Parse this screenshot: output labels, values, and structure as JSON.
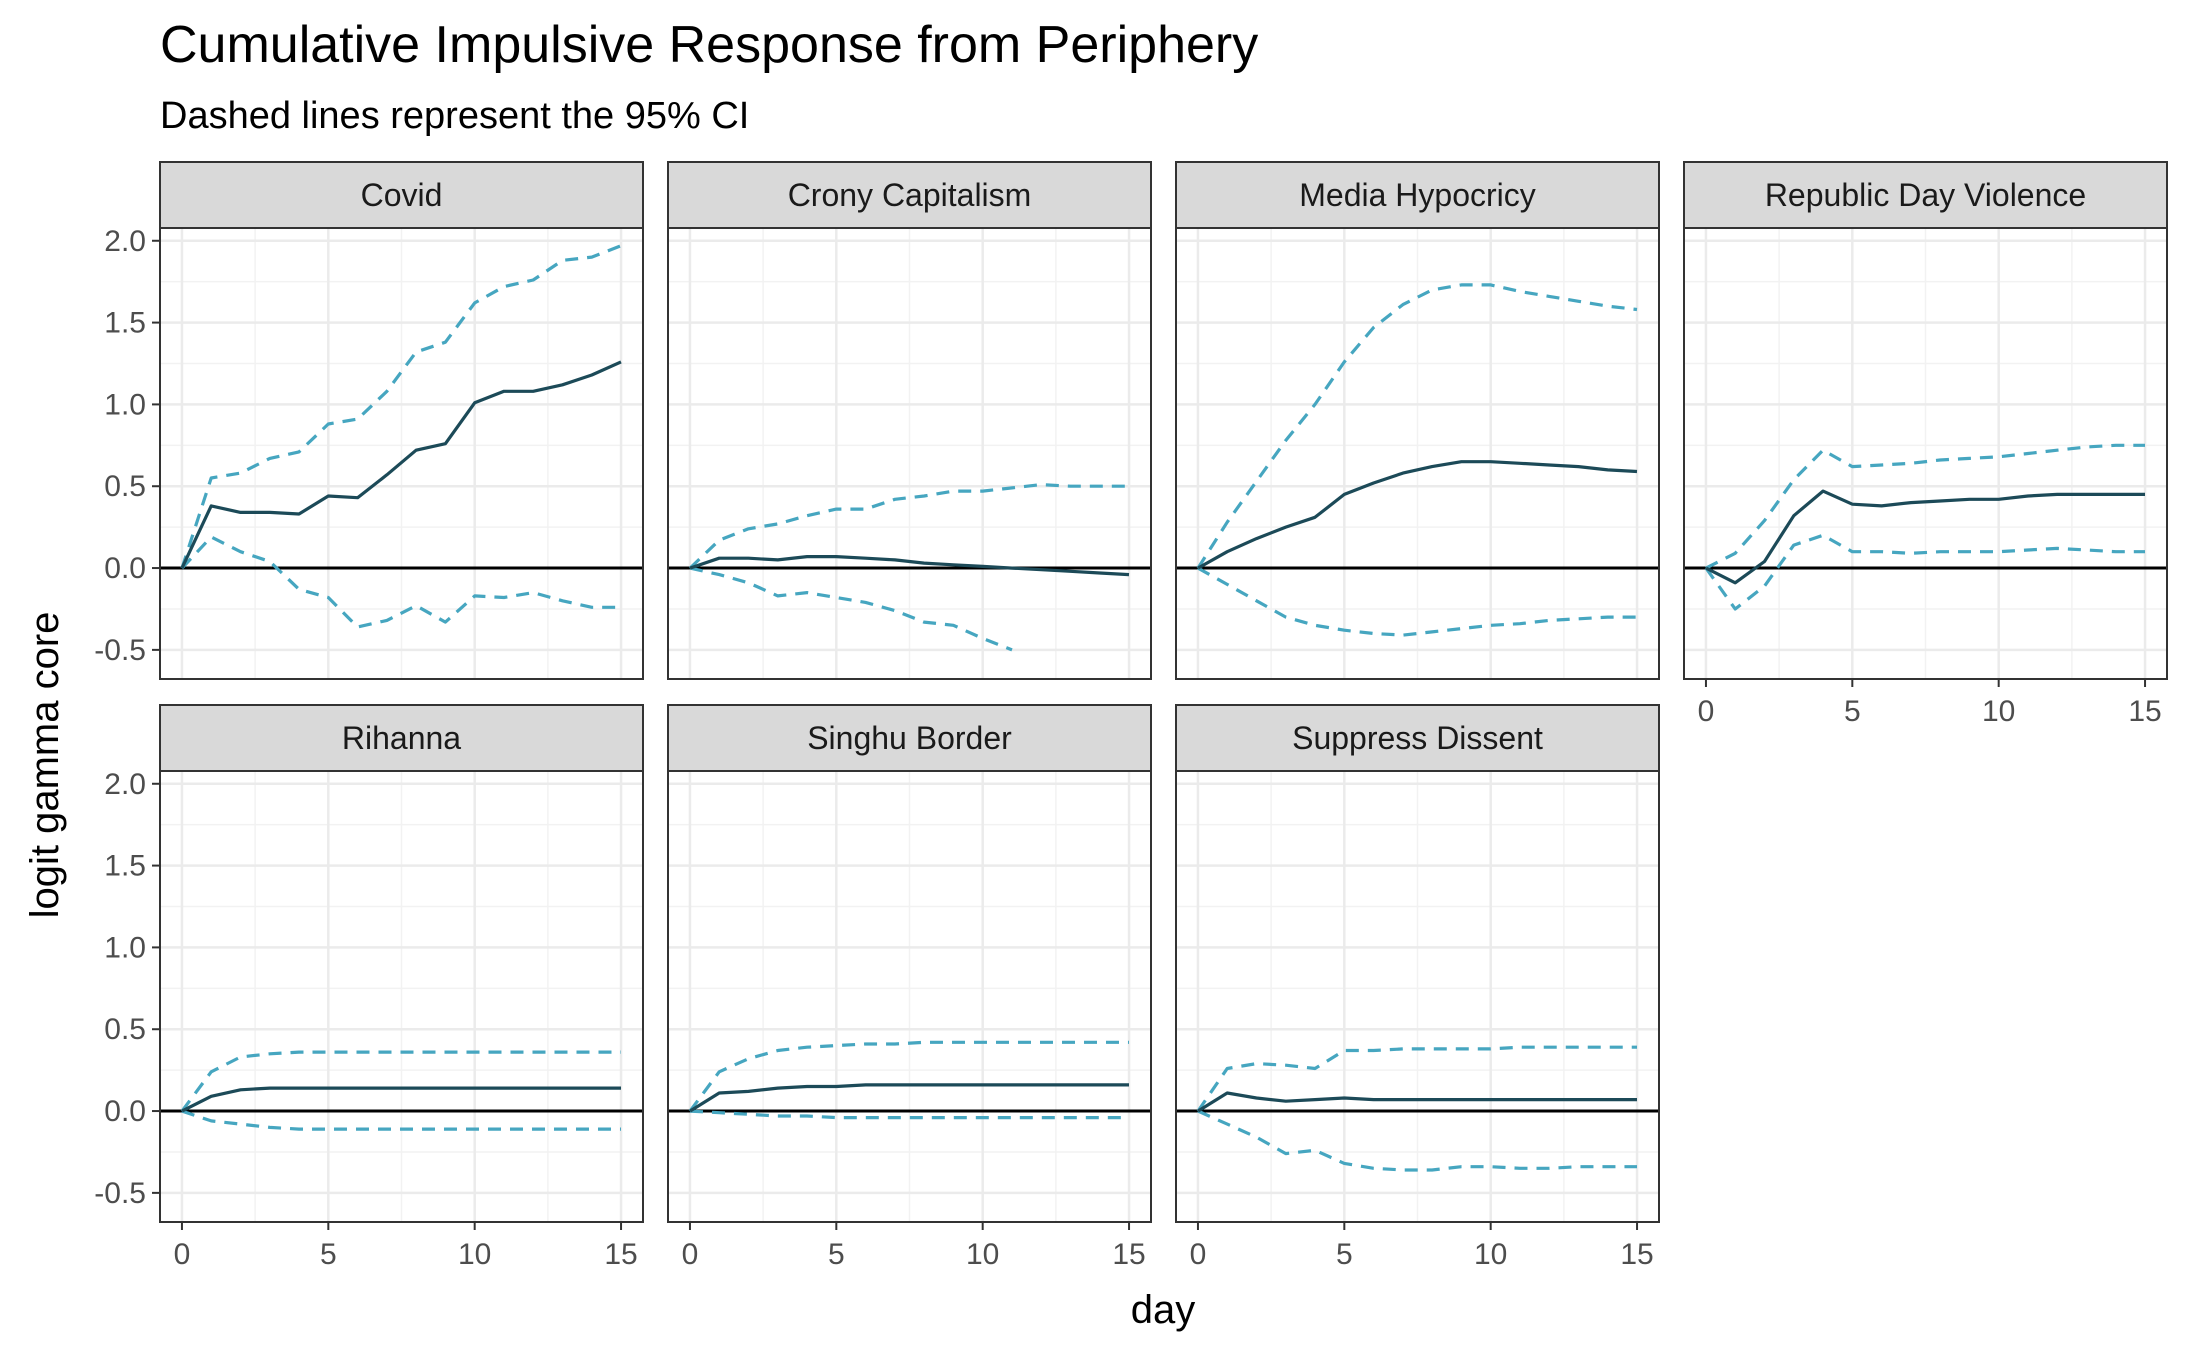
{
  "chart_data": {
    "type": "line",
    "title": "Cumulative Impulsive Response from Periphery",
    "subtitle": "Dashed lines represent the 95% CI",
    "xlabel": "day",
    "ylabel": "logit gamma core",
    "xlim": [
      0,
      15
    ],
    "ylim": [
      -0.6,
      2.0
    ],
    "x_ticks": [
      0,
      5,
      10,
      15
    ],
    "y_ticks": [
      -0.5,
      0.0,
      0.5,
      1.0,
      1.5,
      2.0
    ],
    "x_tick_labels": [
      "0",
      "5",
      "10",
      "15"
    ],
    "y_tick_labels": [
      "-0.5",
      "0.0",
      "0.5",
      "1.0",
      "1.5",
      "2.0"
    ],
    "grid": true,
    "reference_line": 0,
    "colors": {
      "estimate": "#1c4a58",
      "ci": "#46a6c0",
      "strip_bg": "#d9d9d9"
    },
    "x": [
      0,
      1,
      2,
      3,
      4,
      5,
      6,
      7,
      8,
      9,
      10,
      11,
      12,
      13,
      14,
      15
    ],
    "panels": [
      {
        "name": "Covid",
        "estimate": [
          0.0,
          0.38,
          0.34,
          0.34,
          0.33,
          0.44,
          0.43,
          0.57,
          0.72,
          0.76,
          1.01,
          1.08,
          1.08,
          1.12,
          1.18,
          1.26
        ],
        "upper": [
          0.0,
          0.55,
          0.58,
          0.67,
          0.71,
          0.88,
          0.91,
          1.08,
          1.32,
          1.38,
          1.62,
          1.72,
          1.76,
          1.88,
          1.9,
          1.97
        ],
        "lower": [
          0.0,
          0.19,
          0.1,
          0.04,
          -0.13,
          -0.18,
          -0.36,
          -0.32,
          -0.23,
          -0.33,
          -0.17,
          -0.18,
          -0.15,
          -0.2,
          -0.24,
          -0.24
        ]
      },
      {
        "name": "Crony Capitalism",
        "estimate": [
          0.0,
          0.06,
          0.06,
          0.05,
          0.07,
          0.07,
          0.06,
          0.05,
          0.03,
          0.02,
          0.01,
          0.0,
          -0.01,
          -0.02,
          -0.03,
          -0.04
        ],
        "upper": [
          0.0,
          0.17,
          0.24,
          0.27,
          0.32,
          0.36,
          0.36,
          0.42,
          0.44,
          0.47,
          0.47,
          0.49,
          0.51,
          0.5,
          0.5,
          0.5
        ],
        "lower": [
          0.0,
          -0.04,
          -0.09,
          -0.17,
          -0.15,
          -0.18,
          -0.21,
          -0.26,
          -0.33,
          -0.35,
          -0.43,
          -0.5,
          null,
          null,
          null,
          null
        ]
      },
      {
        "name": "Media Hypocricy",
        "estimate": [
          0.0,
          0.1,
          0.18,
          0.25,
          0.31,
          0.45,
          0.52,
          0.58,
          0.62,
          0.65,
          0.65,
          0.64,
          0.63,
          0.62,
          0.6,
          0.59
        ],
        "upper": [
          0.0,
          0.28,
          0.53,
          0.78,
          1.0,
          1.26,
          1.47,
          1.61,
          1.7,
          1.73,
          1.73,
          1.69,
          1.66,
          1.63,
          1.6,
          1.58
        ],
        "lower": [
          0.0,
          -0.1,
          -0.2,
          -0.3,
          -0.35,
          -0.38,
          -0.4,
          -0.41,
          -0.39,
          -0.37,
          -0.35,
          -0.34,
          -0.32,
          -0.31,
          -0.3,
          -0.3
        ]
      },
      {
        "name": "Republic Day Violence",
        "estimate": [
          0.0,
          -0.09,
          0.04,
          0.32,
          0.47,
          0.39,
          0.38,
          0.4,
          0.41,
          0.42,
          0.42,
          0.44,
          0.45,
          0.45,
          0.45,
          0.45
        ],
        "upper": [
          0.0,
          0.09,
          0.29,
          0.54,
          0.72,
          0.62,
          0.63,
          0.64,
          0.66,
          0.67,
          0.68,
          0.7,
          0.72,
          0.74,
          0.75,
          0.75
        ],
        "lower": [
          0.0,
          -0.25,
          -0.11,
          0.14,
          0.2,
          0.1,
          0.1,
          0.09,
          0.1,
          0.1,
          0.1,
          0.11,
          0.12,
          0.11,
          0.1,
          0.1
        ]
      },
      {
        "name": "Rihanna",
        "estimate": [
          0.0,
          0.09,
          0.13,
          0.14,
          0.14,
          0.14,
          0.14,
          0.14,
          0.14,
          0.14,
          0.14,
          0.14,
          0.14,
          0.14,
          0.14,
          0.14
        ],
        "upper": [
          0.0,
          0.24,
          0.33,
          0.35,
          0.36,
          0.36,
          0.36,
          0.36,
          0.36,
          0.36,
          0.36,
          0.36,
          0.36,
          0.36,
          0.36,
          0.36
        ],
        "lower": [
          0.0,
          -0.06,
          -0.08,
          -0.1,
          -0.11,
          -0.11,
          -0.11,
          -0.11,
          -0.11,
          -0.11,
          -0.11,
          -0.11,
          -0.11,
          -0.11,
          -0.11,
          -0.11
        ]
      },
      {
        "name": "Singhu Border",
        "estimate": [
          0.0,
          0.11,
          0.12,
          0.14,
          0.15,
          0.15,
          0.16,
          0.16,
          0.16,
          0.16,
          0.16,
          0.16,
          0.16,
          0.16,
          0.16,
          0.16
        ],
        "upper": [
          0.0,
          0.24,
          0.32,
          0.37,
          0.39,
          0.4,
          0.41,
          0.41,
          0.42,
          0.42,
          0.42,
          0.42,
          0.42,
          0.42,
          0.42,
          0.42
        ],
        "lower": [
          0.0,
          -0.01,
          -0.02,
          -0.03,
          -0.03,
          -0.04,
          -0.04,
          -0.04,
          -0.04,
          -0.04,
          -0.04,
          -0.04,
          -0.04,
          -0.04,
          -0.04,
          -0.04
        ]
      },
      {
        "name": "Suppress Dissent",
        "estimate": [
          0.0,
          0.11,
          0.08,
          0.06,
          0.07,
          0.08,
          0.07,
          0.07,
          0.07,
          0.07,
          0.07,
          0.07,
          0.07,
          0.07,
          0.07,
          0.07
        ],
        "upper": [
          0.0,
          0.26,
          0.29,
          0.28,
          0.26,
          0.37,
          0.37,
          0.38,
          0.38,
          0.38,
          0.38,
          0.39,
          0.39,
          0.39,
          0.39,
          0.39
        ],
        "lower": [
          0.0,
          -0.08,
          -0.16,
          -0.26,
          -0.24,
          -0.32,
          -0.35,
          -0.36,
          -0.36,
          -0.34,
          -0.34,
          -0.35,
          -0.35,
          -0.34,
          -0.34,
          -0.34
        ]
      }
    ]
  }
}
